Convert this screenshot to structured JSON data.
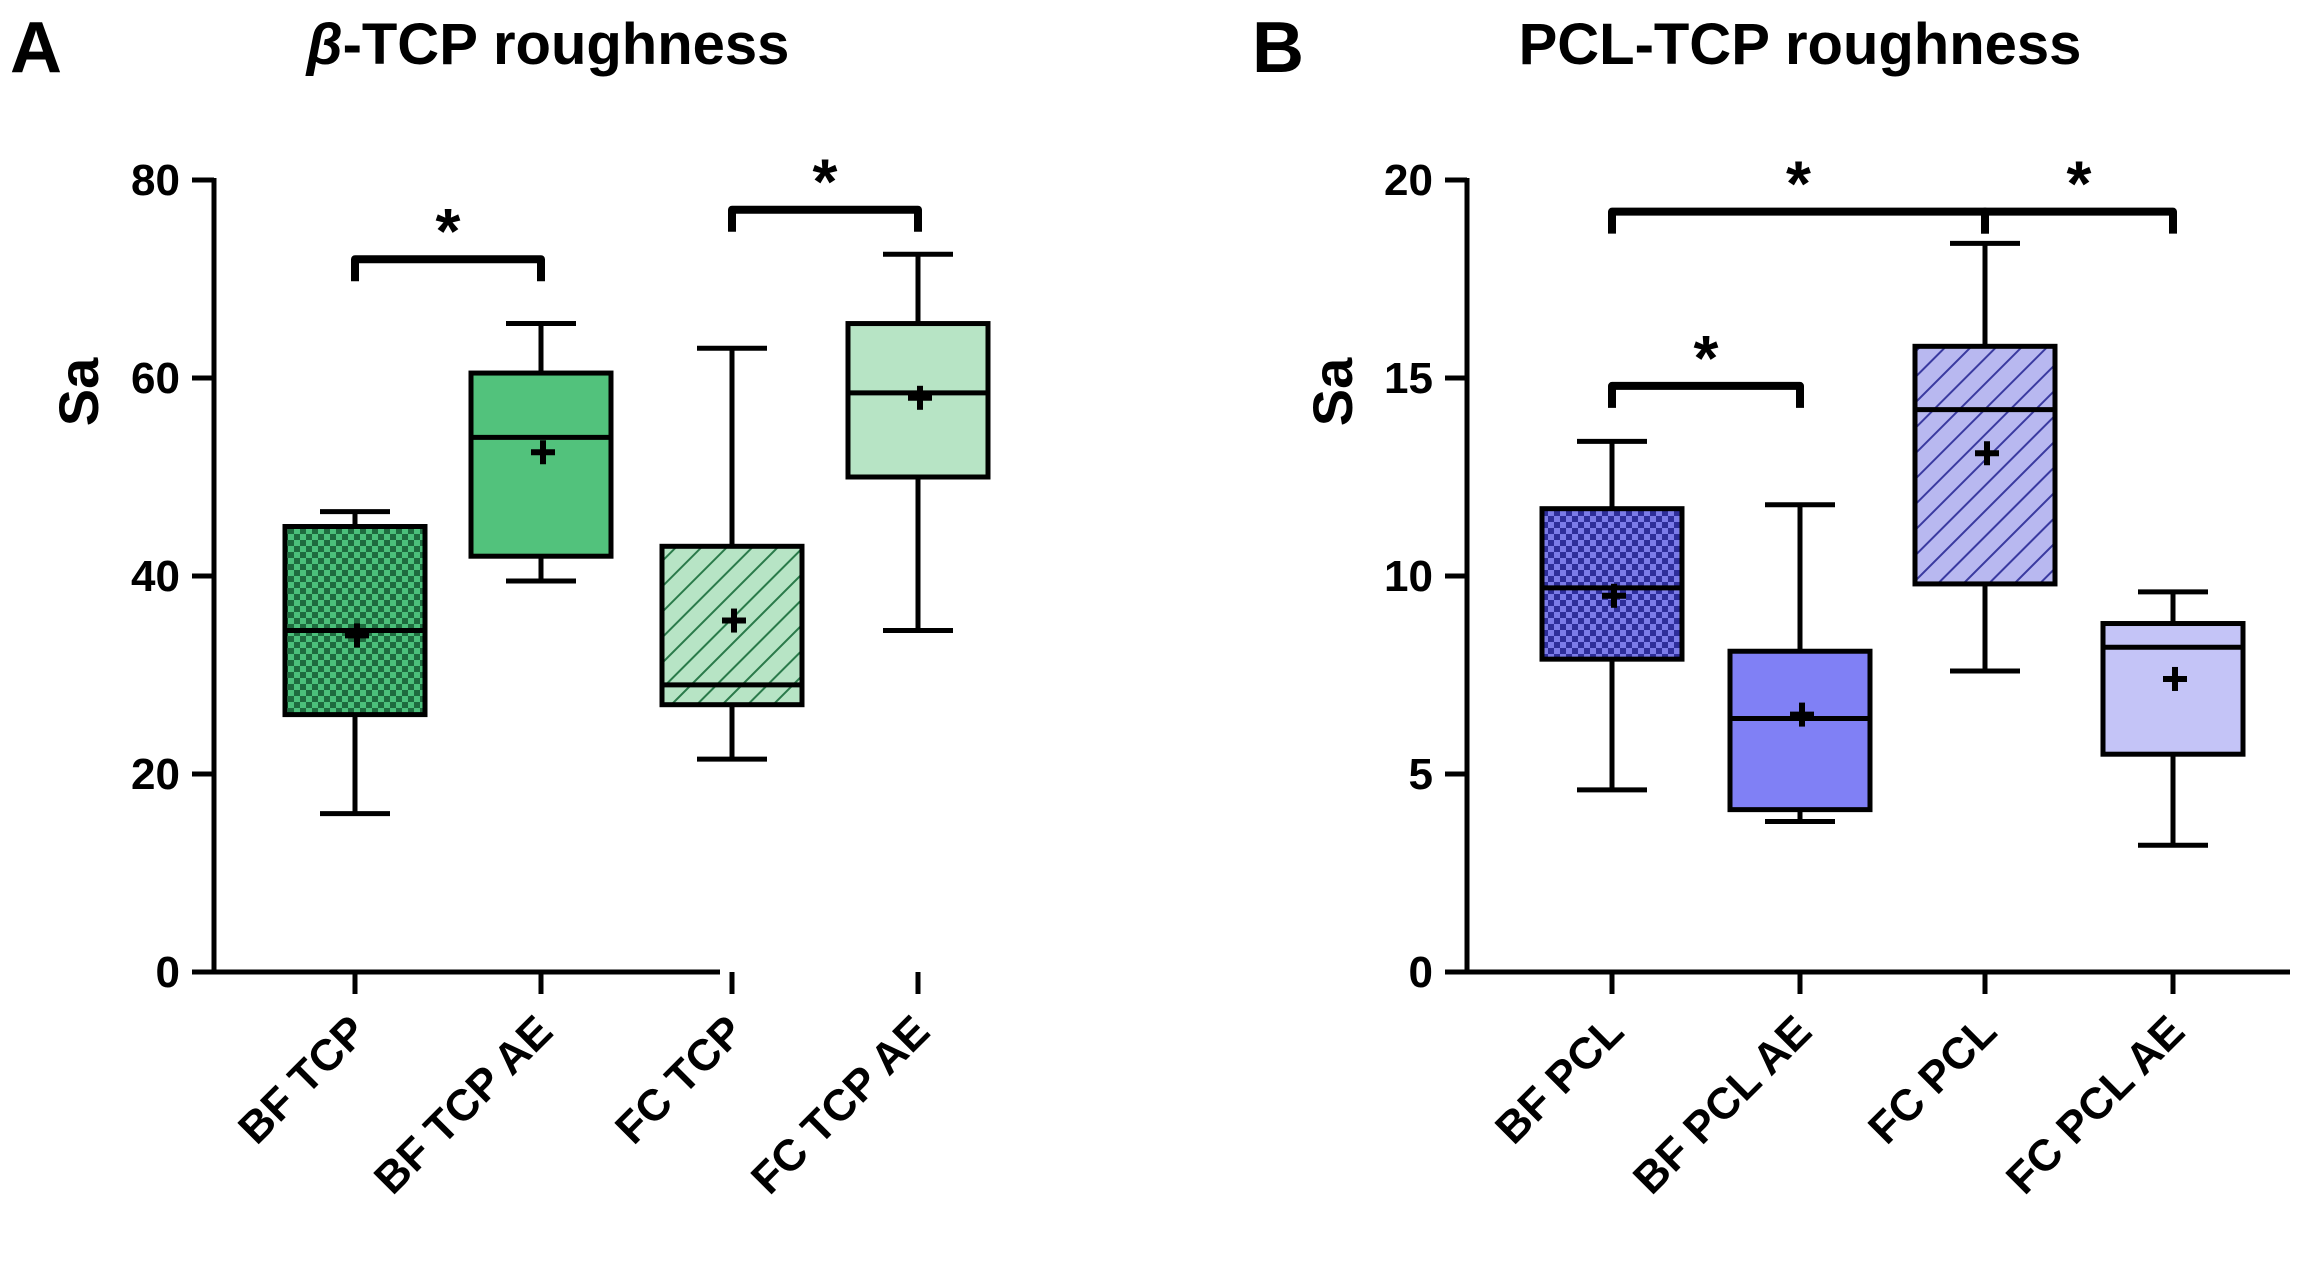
{
  "chart_data": [
    {
      "panel": "A",
      "type": "box",
      "title_symbol": "β",
      "title_rest": "-TCP roughness",
      "ylabel": "Sa",
      "ylim": [
        0,
        80
      ],
      "yticks": [
        0,
        20,
        40,
        60,
        80
      ],
      "categories": [
        "BF TCP",
        "BF TCP AE",
        "FC TCP",
        "FC TCP AE"
      ],
      "boxes": [
        {
          "label": "BF TCP",
          "min": 16,
          "q1": 26,
          "median": 34.5,
          "q3": 45,
          "max": 46.5,
          "mean": 34,
          "color": "#4bbf7a",
          "pattern": "checker"
        },
        {
          "label": "BF TCP AE",
          "min": 39.5,
          "q1": 42,
          "median": 54,
          "q3": 60.5,
          "max": 65.5,
          "mean": 52.5,
          "color": "#52c27c",
          "pattern": "none"
        },
        {
          "label": "FC TCP",
          "min": 21.5,
          "q1": 27,
          "median": 29,
          "q3": 43,
          "max": 63,
          "mean": 35.5,
          "color": "#b7e4c5",
          "pattern": "hatch"
        },
        {
          "label": "FC TCP AE",
          "min": 34.5,
          "q1": 50,
          "median": 58.5,
          "q3": 65.5,
          "max": 72.5,
          "mean": 58,
          "color": "#b7e4c5",
          "pattern": "none"
        }
      ],
      "significance": [
        {
          "from": 0,
          "to": 1,
          "y": 72,
          "label": "*"
        },
        {
          "from": 2,
          "to": 3,
          "y": 77,
          "label": "*"
        }
      ]
    },
    {
      "panel": "B",
      "type": "box",
      "title_symbol": "",
      "title_rest": "PCL-TCP roughness",
      "ylabel": "Sa",
      "ylim": [
        0,
        20
      ],
      "yticks": [
        0,
        5,
        10,
        15,
        20
      ],
      "categories": [
        "BF PCL",
        "BF PCL AE",
        "FC PCL",
        "FC PCL AE"
      ],
      "boxes": [
        {
          "label": "BF PCL",
          "min": 4.6,
          "q1": 7.9,
          "median": 9.7,
          "q3": 11.7,
          "max": 13.4,
          "mean": 9.5,
          "color": "#7b7be8",
          "pattern": "checker"
        },
        {
          "label": "BF PCL AE",
          "min": 3.8,
          "q1": 4.1,
          "median": 6.4,
          "q3": 8.1,
          "max": 11.8,
          "mean": 6.5,
          "color": "#8080f5",
          "pattern": "none"
        },
        {
          "label": "FC PCL",
          "min": 7.6,
          "q1": 9.8,
          "median": 14.2,
          "q3": 15.8,
          "max": 18.4,
          "mean": 13.1,
          "color": "#b8b8f0",
          "pattern": "hatch"
        },
        {
          "label": "FC PCL AE",
          "min": 3.2,
          "q1": 5.5,
          "median": 8.2,
          "q3": 8.8,
          "max": 9.6,
          "mean": 7.4,
          "color": "#c4c4f7",
          "pattern": "none"
        }
      ],
      "significance": [
        {
          "from": 1,
          "to": 0,
          "y": 14.8,
          "label": "*"
        },
        {
          "from": 0,
          "to": 2,
          "y": 19.2,
          "label": "*"
        },
        {
          "from": 2,
          "to": 3,
          "y": 19.2,
          "label": "*"
        }
      ]
    }
  ]
}
